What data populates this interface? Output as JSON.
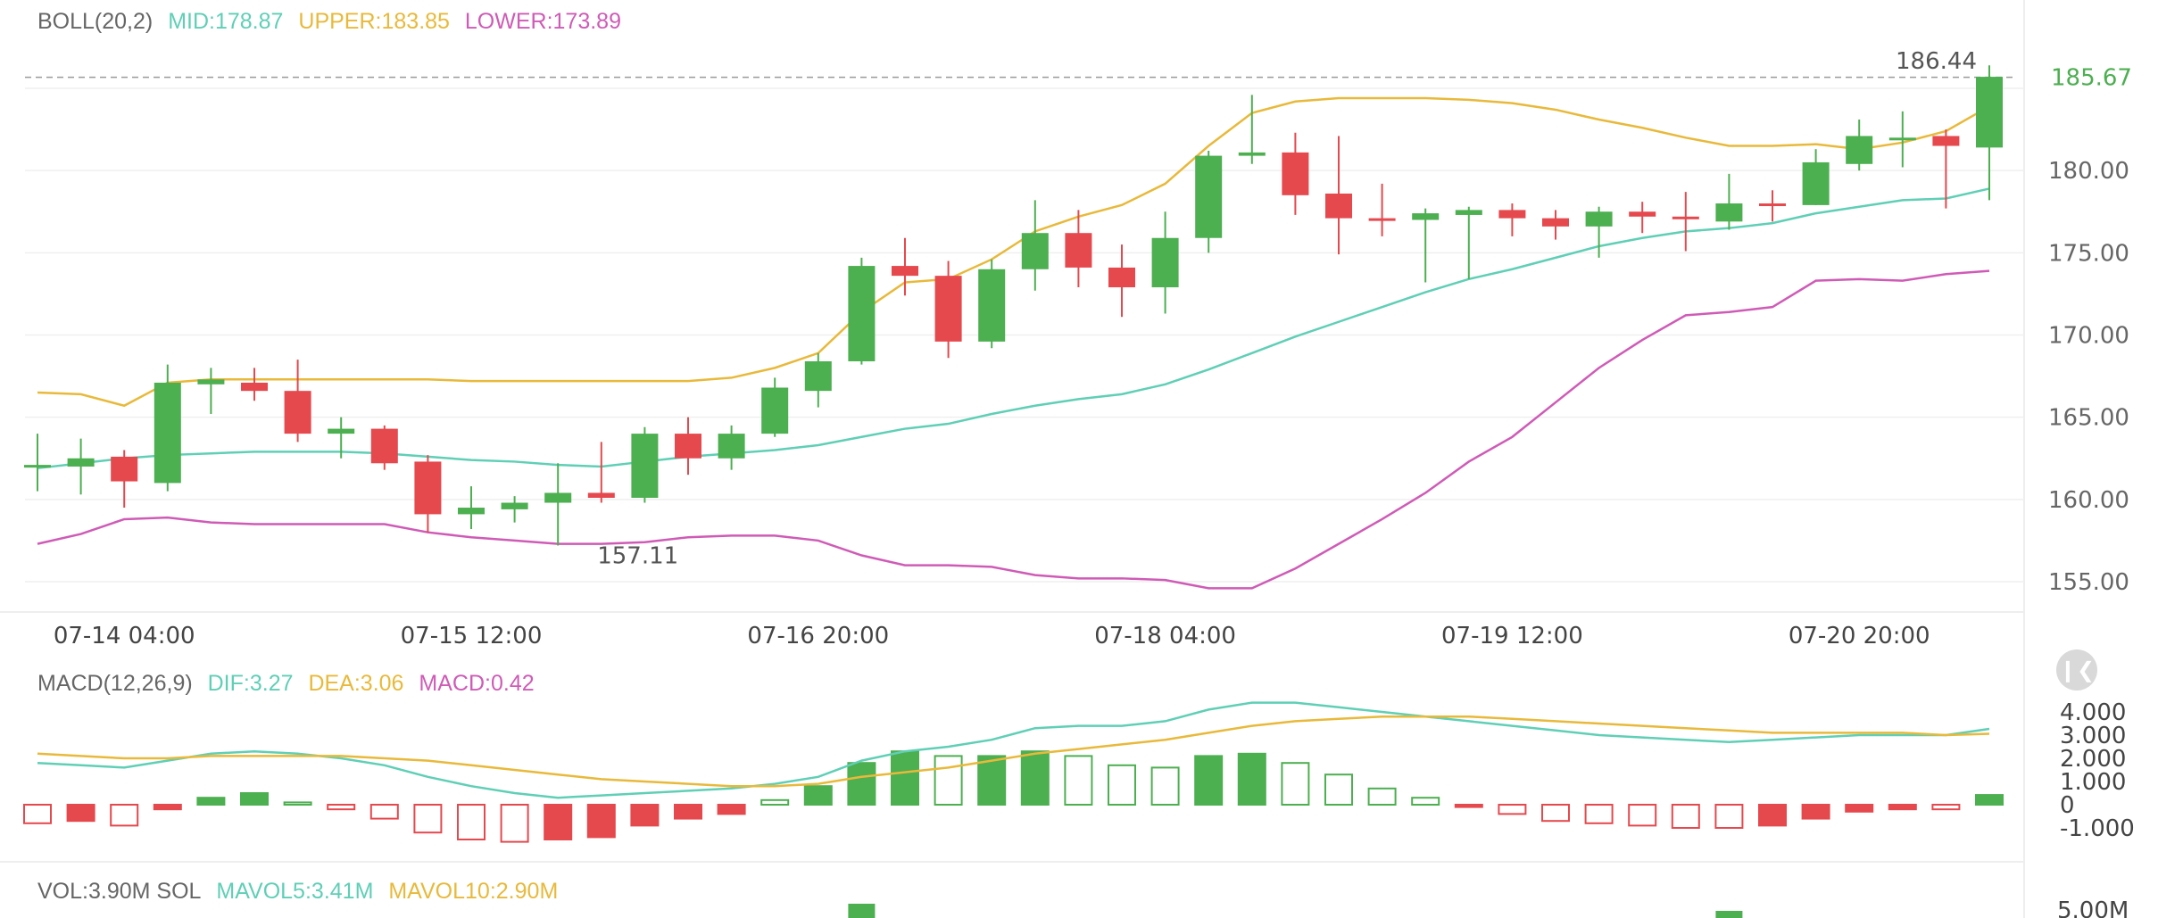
{
  "legends": {
    "boll": {
      "name": "BOLL(20,2)",
      "mid": "MID:178.87",
      "upper": "UPPER:183.85",
      "lower": "LOWER:173.89"
    },
    "macd": {
      "name": "MACD(12,26,9)",
      "dif": "DIF:3.27",
      "dea": "DEA:3.06",
      "macd": "MACD:0.42"
    },
    "vol": {
      "name": "VOL:3.90M SOL",
      "mavol5": "MAVOL5:3.41M",
      "mavol10": "MAVOL10:2.90M"
    }
  },
  "colors": {
    "up": "#4caf50",
    "down": "#e5484d",
    "mid": "#5fcfb6",
    "upper": "#e8b93a",
    "lower": "#cf5bb6",
    "text": "#666666",
    "grid": "#efefef",
    "current_price": "#4caf50"
  },
  "icons": {
    "collapse": "collapse-left-icon"
  },
  "chart_data": [
    {
      "type": "candlestick",
      "title": "BOLL(20,2)",
      "ylim": [
        153,
        189
      ],
      "y_ticks": [
        "155.00",
        "160.00",
        "165.00",
        "170.00",
        "175.00",
        "180.00",
        "185.00"
      ],
      "x_ticks": [
        "07-14 04:00",
        "07-15 12:00",
        "07-16 20:00",
        "07-18 04:00",
        "07-19 12:00",
        "07-20 20:00"
      ],
      "annotations": {
        "high_label": "186.44",
        "low_label": "157.11",
        "current_price": "185.67"
      },
      "candles": [
        {
          "o": 162.0,
          "c": 162.1,
          "h": 164.0,
          "l": 160.5
        },
        {
          "o": 162.0,
          "c": 162.5,
          "h": 163.7,
          "l": 160.3
        },
        {
          "o": 162.6,
          "c": 161.1,
          "h": 163.0,
          "l": 159.5
        },
        {
          "o": 161.0,
          "c": 167.1,
          "h": 168.2,
          "l": 160.5
        },
        {
          "o": 167.0,
          "c": 167.3,
          "h": 168.0,
          "l": 165.2
        },
        {
          "o": 167.1,
          "c": 166.6,
          "h": 168.0,
          "l": 166.0
        },
        {
          "o": 166.6,
          "c": 164.0,
          "h": 168.5,
          "l": 163.5
        },
        {
          "o": 164.0,
          "c": 164.3,
          "h": 165.0,
          "l": 162.5
        },
        {
          "o": 164.3,
          "c": 162.2,
          "h": 164.5,
          "l": 161.8
        },
        {
          "o": 162.3,
          "c": 159.1,
          "h": 162.7,
          "l": 158.0
        },
        {
          "o": 159.1,
          "c": 159.5,
          "h": 160.8,
          "l": 158.2
        },
        {
          "o": 159.4,
          "c": 159.8,
          "h": 160.2,
          "l": 158.6
        },
        {
          "o": 159.8,
          "c": 160.4,
          "h": 162.2,
          "l": 157.2
        },
        {
          "o": 160.4,
          "c": 160.1,
          "h": 163.5,
          "l": 159.8
        },
        {
          "o": 160.1,
          "c": 164.0,
          "h": 164.4,
          "l": 159.8
        },
        {
          "o": 164.0,
          "c": 162.5,
          "h": 165.0,
          "l": 161.5
        },
        {
          "o": 162.5,
          "c": 164.0,
          "h": 164.5,
          "l": 161.8
        },
        {
          "o": 164.0,
          "c": 166.8,
          "h": 167.4,
          "l": 163.8
        },
        {
          "o": 166.6,
          "c": 168.4,
          "h": 168.9,
          "l": 165.6
        },
        {
          "o": 168.4,
          "c": 174.2,
          "h": 174.7,
          "l": 168.2
        },
        {
          "o": 174.2,
          "c": 173.6,
          "h": 175.9,
          "l": 172.4
        },
        {
          "o": 173.6,
          "c": 169.6,
          "h": 174.5,
          "l": 168.6
        },
        {
          "o": 169.6,
          "c": 174.0,
          "h": 174.6,
          "l": 169.2
        },
        {
          "o": 174.0,
          "c": 176.2,
          "h": 178.2,
          "l": 172.7
        },
        {
          "o": 176.2,
          "c": 174.1,
          "h": 177.6,
          "l": 172.9
        },
        {
          "o": 174.1,
          "c": 172.9,
          "h": 175.5,
          "l": 171.1
        },
        {
          "o": 172.9,
          "c": 175.9,
          "h": 177.5,
          "l": 171.3
        },
        {
          "o": 175.9,
          "c": 180.9,
          "h": 181.2,
          "l": 175.0
        },
        {
          "o": 180.9,
          "c": 181.1,
          "h": 184.6,
          "l": 180.4
        },
        {
          "o": 181.1,
          "c": 178.5,
          "h": 182.3,
          "l": 177.3
        },
        {
          "o": 178.6,
          "c": 177.1,
          "h": 182.1,
          "l": 174.9
        },
        {
          "o": 177.1,
          "c": 177.0,
          "h": 179.2,
          "l": 176.0
        },
        {
          "o": 177.0,
          "c": 177.4,
          "h": 177.7,
          "l": 173.2
        },
        {
          "o": 177.3,
          "c": 177.6,
          "h": 177.8,
          "l": 173.4
        },
        {
          "o": 177.6,
          "c": 177.1,
          "h": 178.0,
          "l": 176.0
        },
        {
          "o": 177.1,
          "c": 176.6,
          "h": 177.6,
          "l": 175.8
        },
        {
          "o": 176.6,
          "c": 177.5,
          "h": 177.8,
          "l": 174.7
        },
        {
          "o": 177.5,
          "c": 177.2,
          "h": 178.1,
          "l": 176.2
        },
        {
          "o": 177.2,
          "c": 177.1,
          "h": 178.7,
          "l": 175.1
        },
        {
          "o": 176.9,
          "c": 178.0,
          "h": 179.8,
          "l": 176.4
        },
        {
          "o": 178.0,
          "c": 177.9,
          "h": 178.8,
          "l": 176.9
        },
        {
          "o": 177.9,
          "c": 180.5,
          "h": 181.3,
          "l": 177.9
        },
        {
          "o": 180.4,
          "c": 182.1,
          "h": 183.1,
          "l": 180.0
        },
        {
          "o": 182.0,
          "c": 182.0,
          "h": 183.6,
          "l": 180.2
        },
        {
          "o": 182.1,
          "c": 181.5,
          "h": 182.5,
          "l": 177.7
        },
        {
          "o": 181.4,
          "c": 185.7,
          "h": 186.4,
          "l": 178.2
        }
      ],
      "series": [
        {
          "name": "UPPER",
          "values": [
            166.5,
            166.4,
            165.7,
            167.1,
            167.3,
            167.3,
            167.3,
            167.3,
            167.3,
            167.3,
            167.2,
            167.2,
            167.2,
            167.2,
            167.2,
            167.2,
            167.4,
            168.0,
            168.9,
            171.4,
            173.2,
            173.4,
            174.6,
            176.3,
            177.2,
            177.9,
            179.2,
            181.5,
            183.5,
            184.2,
            184.4,
            184.4,
            184.4,
            184.3,
            184.1,
            183.7,
            183.1,
            182.6,
            182.0,
            181.5,
            181.5,
            181.6,
            181.3,
            181.7,
            182.4,
            183.9
          ]
        },
        {
          "name": "MID",
          "values": [
            161.9,
            162.2,
            162.5,
            162.7,
            162.8,
            162.9,
            162.9,
            162.9,
            162.8,
            162.6,
            162.4,
            162.3,
            162.1,
            162.0,
            162.3,
            162.6,
            162.8,
            163.0,
            163.3,
            163.8,
            164.3,
            164.6,
            165.2,
            165.7,
            166.1,
            166.4,
            167.0,
            167.9,
            168.9,
            169.9,
            170.8,
            171.7,
            172.6,
            173.4,
            174.0,
            174.7,
            175.4,
            175.9,
            176.3,
            176.5,
            176.8,
            177.4,
            177.8,
            178.2,
            178.3,
            178.9
          ]
        },
        {
          "name": "LOWER",
          "values": [
            157.3,
            157.9,
            158.8,
            158.9,
            158.6,
            158.5,
            158.5,
            158.5,
            158.5,
            158.0,
            157.7,
            157.5,
            157.3,
            157.3,
            157.4,
            157.7,
            157.8,
            157.8,
            157.5,
            156.6,
            156.0,
            156.0,
            155.9,
            155.4,
            155.2,
            155.2,
            155.1,
            154.6,
            154.6,
            155.8,
            157.3,
            158.8,
            160.4,
            162.3,
            163.8,
            165.9,
            168.0,
            169.7,
            171.2,
            171.4,
            171.7,
            173.3,
            173.4,
            173.3,
            173.7,
            173.9
          ]
        }
      ]
    },
    {
      "type": "macd",
      "title": "MACD(12,26,9)",
      "ylim": [
        -1.5,
        5.0
      ],
      "y_ticks": [
        "4.000",
        "3.000",
        "2.000",
        "1.000",
        "0",
        "-1.000"
      ],
      "histogram": [
        -0.8,
        -0.7,
        -0.9,
        -0.2,
        0.3,
        0.5,
        0.1,
        -0.2,
        -0.6,
        -1.2,
        -1.5,
        -1.6,
        -1.5,
        -1.4,
        -0.9,
        -0.6,
        -0.4,
        0.2,
        0.8,
        1.8,
        2.3,
        2.1,
        2.1,
        2.3,
        2.1,
        1.7,
        1.6,
        2.1,
        2.2,
        1.8,
        1.3,
        0.7,
        0.3,
        -0.1,
        -0.4,
        -0.7,
        -0.8,
        -0.9,
        -1.0,
        -1.0,
        -0.9,
        -0.6,
        -0.3,
        -0.2,
        -0.2,
        0.42
      ],
      "series": [
        {
          "name": "DIF",
          "values": [
            1.8,
            1.7,
            1.6,
            1.9,
            2.2,
            2.3,
            2.2,
            2.0,
            1.7,
            1.2,
            0.8,
            0.5,
            0.3,
            0.4,
            0.5,
            0.6,
            0.7,
            0.9,
            1.2,
            1.9,
            2.3,
            2.5,
            2.8,
            3.3,
            3.4,
            3.4,
            3.6,
            4.1,
            4.4,
            4.4,
            4.2,
            4.0,
            3.8,
            3.6,
            3.4,
            3.2,
            3.0,
            2.9,
            2.8,
            2.7,
            2.8,
            2.9,
            3.0,
            3.0,
            3.0,
            3.27
          ]
        },
        {
          "name": "DEA",
          "values": [
            2.2,
            2.1,
            2.0,
            2.0,
            2.1,
            2.1,
            2.1,
            2.1,
            2.0,
            1.9,
            1.7,
            1.5,
            1.3,
            1.1,
            1.0,
            0.9,
            0.8,
            0.8,
            0.9,
            1.2,
            1.4,
            1.6,
            1.9,
            2.2,
            2.4,
            2.6,
            2.8,
            3.1,
            3.4,
            3.6,
            3.7,
            3.8,
            3.8,
            3.8,
            3.7,
            3.6,
            3.5,
            3.4,
            3.3,
            3.2,
            3.1,
            3.1,
            3.1,
            3.1,
            3.0,
            3.06
          ]
        }
      ]
    }
  ],
  "volume": {
    "y_tick": "5.00M"
  }
}
